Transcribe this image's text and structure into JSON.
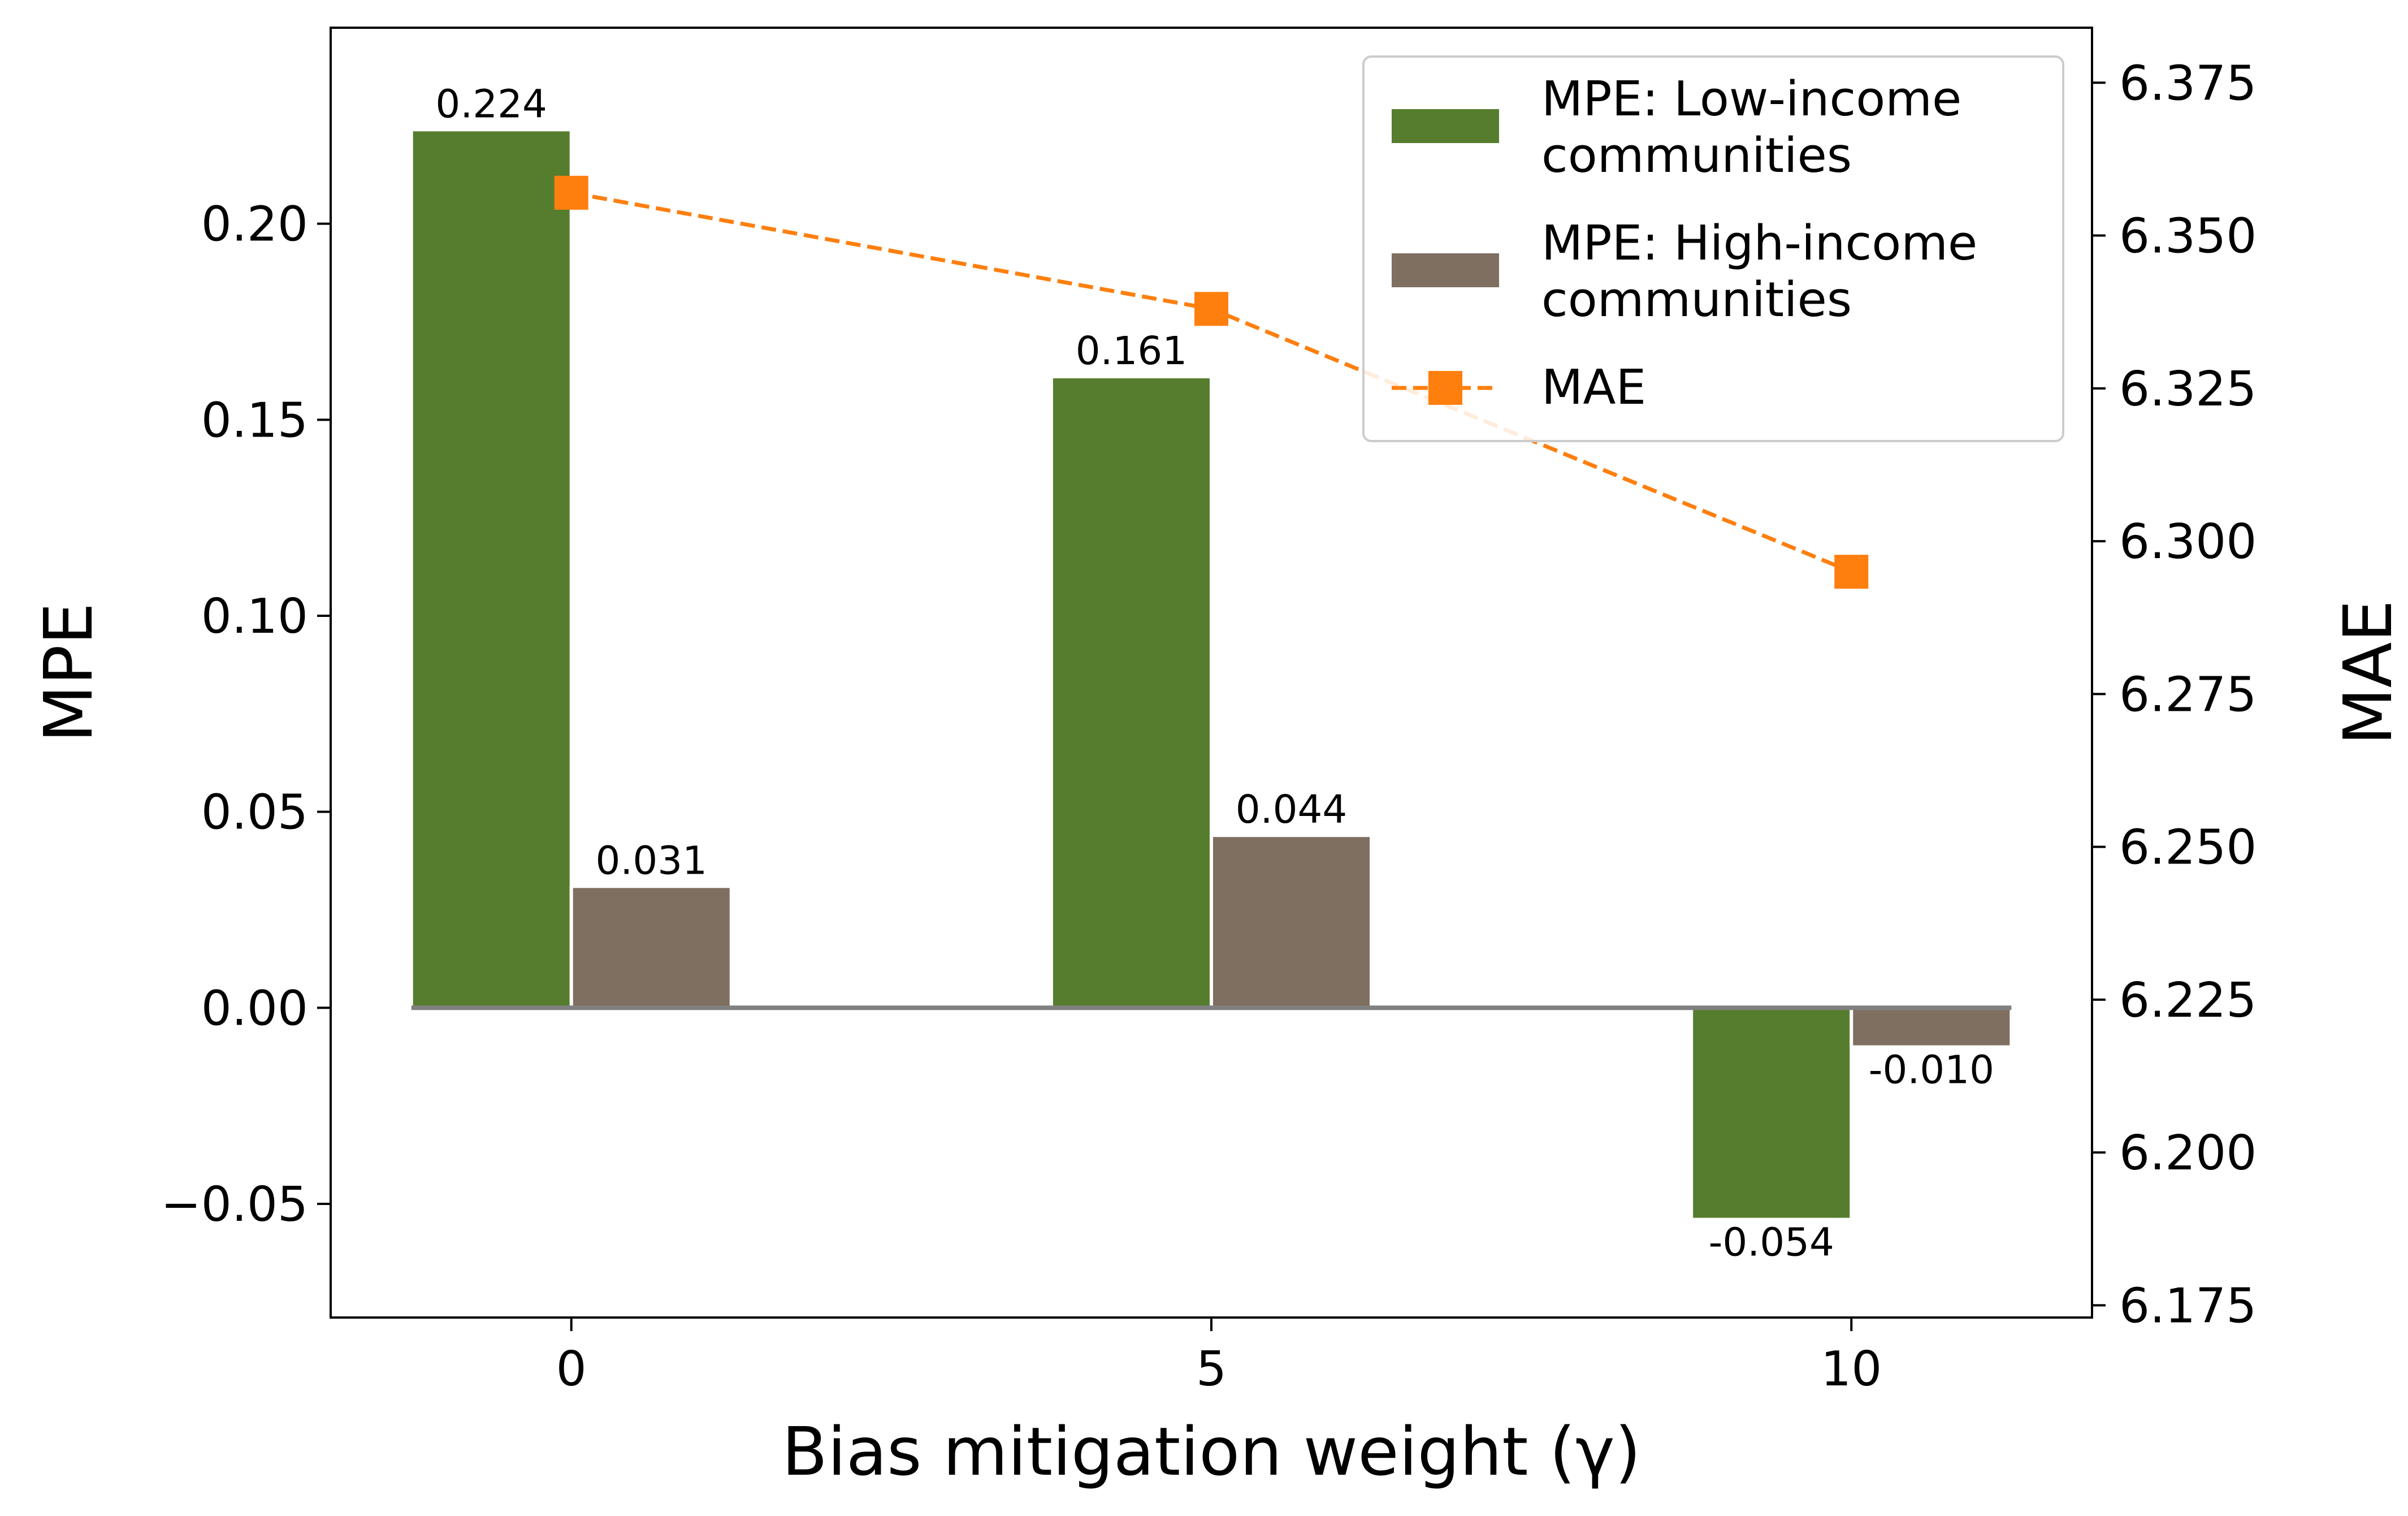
{
  "chart_data": {
    "type": "bar",
    "x": [
      0,
      5,
      10
    ],
    "xticklabels": [
      "0",
      "5",
      "10"
    ],
    "xlabel": "Bias mitigation weight (γ)",
    "ylabel": "MPE",
    "ylabel_right": "MAE",
    "ylim": [
      -0.079,
      0.25
    ],
    "ylim_right": [
      6.173,
      6.384
    ],
    "yticks": [
      -0.05,
      0.0,
      0.05,
      0.1,
      0.15,
      0.2
    ],
    "yticklabels": [
      "−0.05",
      "0.00",
      "0.05",
      "0.10",
      "0.15",
      "0.20"
    ],
    "yticks_right": [
      6.175,
      6.2,
      6.225,
      6.25,
      6.275,
      6.3,
      6.325,
      6.35,
      6.375
    ],
    "yticklabels_right": [
      "6.175",
      "6.200",
      "6.225",
      "6.250",
      "6.275",
      "6.300",
      "6.325",
      "6.350",
      "6.375"
    ],
    "series": [
      {
        "name": "MPE: Low-income communities",
        "legend_lines": [
          "MPE: Low-income",
          "communities"
        ],
        "kind": "bar",
        "axis": "left",
        "color": "#567d2e",
        "values": [
          0.224,
          0.161,
          -0.054
        ],
        "labels": [
          "0.224",
          "0.161",
          "-0.054"
        ]
      },
      {
        "name": "MPE: High-income communities",
        "legend_lines": [
          "MPE: High-income",
          "communities"
        ],
        "kind": "bar",
        "axis": "left",
        "color": "#7f6f60",
        "values": [
          0.031,
          0.044,
          -0.01
        ],
        "labels": [
          "0.031",
          "0.044",
          "-0.010"
        ]
      },
      {
        "name": "MAE",
        "legend_lines": [
          "MAE"
        ],
        "kind": "line",
        "axis": "right",
        "color": "#ff7f0e",
        "linestyle": "dashed",
        "marker": "square",
        "values": [
          6.357,
          6.338,
          6.295
        ]
      }
    ],
    "zero_line": true,
    "grid": false,
    "legend_position": "top-right"
  }
}
